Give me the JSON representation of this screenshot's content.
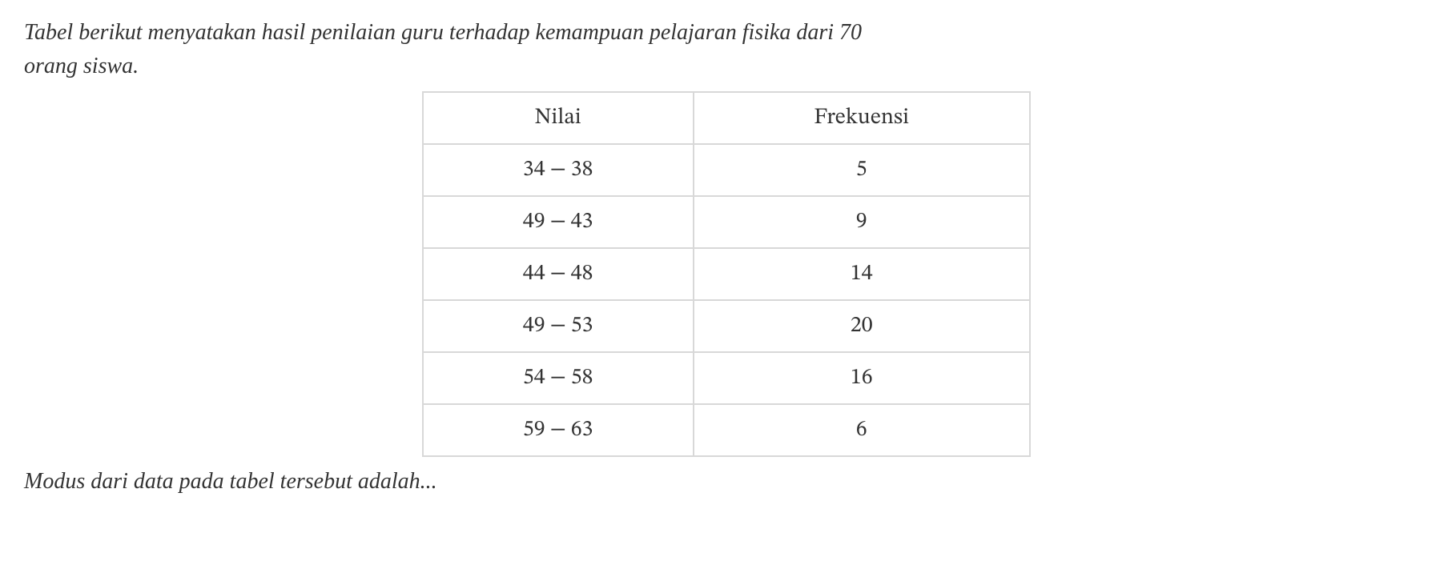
{
  "intro": {
    "line1": "Tabel berikut menyatakan hasil penilaian guru terhadap kemampuan pelajaran fisika dari 70",
    "line2": "orang siswa."
  },
  "table": {
    "headers": {
      "col1": "Nilai",
      "col2": "Frekuensi"
    },
    "rows": [
      {
        "nilai_low": "34",
        "nilai_high": "38",
        "frekuensi": "5"
      },
      {
        "nilai_low": "49",
        "nilai_high": "43",
        "frekuensi": "9"
      },
      {
        "nilai_low": "44",
        "nilai_high": "48",
        "frekuensi": "14"
      },
      {
        "nilai_low": "49",
        "nilai_high": "53",
        "frekuensi": "20"
      },
      {
        "nilai_low": "54",
        "nilai_high": "58",
        "frekuensi": "16"
      },
      {
        "nilai_low": "59",
        "nilai_high": "63",
        "frekuensi": "6"
      }
    ],
    "border_color": "#d8d8d8",
    "cell_fontsize": 28,
    "background_color": "#ffffff",
    "text_color": "#333333"
  },
  "outro": "Modus dari data pada tabel tersebut adalah...",
  "separator": "−"
}
